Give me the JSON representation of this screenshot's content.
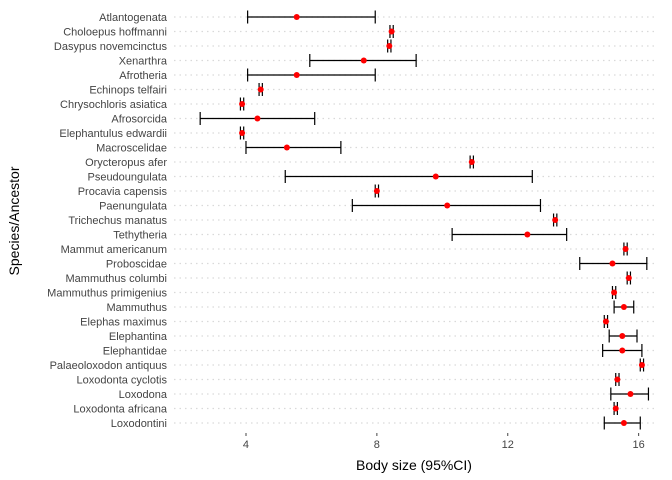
{
  "chart_data": {
    "type": "scatter",
    "subtype": "point-with-error-bars",
    "xlabel": "Body size (95%CI)",
    "ylabel": "Species/Ancestor",
    "xlim": [
      1.8,
      16.5
    ],
    "xticks": [
      4,
      8,
      12,
      16
    ],
    "grid": "dotted horizontal major gridlines",
    "point_color": "#ff0000",
    "errorbar_color": "#000000",
    "categories": [
      "Atlantogenata",
      "Choloepus hoffmanni",
      "Dasypus novemcinctus",
      "Xenarthra",
      "Afrotheria",
      "Echinops telfairi",
      "Chrysochloris asiatica",
      "Afrosorcida",
      "Elephantulus edwardii",
      "Macroscelidae",
      "Orycteropus afer",
      "Pseudoungulata",
      "Procavia capensis",
      "Paenungulata",
      "Trichechus manatus",
      "Tethytheria",
      "Mammut americanum",
      "Proboscidae",
      "Mammuthus columbi",
      "Mammuthus primigenius",
      "Mammuthus",
      "Elephas maximus",
      "Elephantina",
      "Elephantidae",
      "Palaeoloxodon antiquus",
      "Loxodonta cyclotis",
      "Loxodona",
      "Loxodonta africana",
      "Loxodontini"
    ],
    "estimate": [
      5.55,
      8.45,
      8.38,
      7.6,
      5.55,
      4.45,
      3.88,
      4.35,
      3.88,
      5.25,
      10.9,
      9.8,
      8.0,
      10.15,
      13.45,
      12.6,
      15.6,
      15.2,
      15.7,
      15.25,
      15.55,
      15.0,
      15.5,
      15.5,
      16.1,
      15.35,
      15.75,
      15.3,
      15.55
    ],
    "lower": [
      4.05,
      8.4,
      8.33,
      5.95,
      4.05,
      4.4,
      3.83,
      2.6,
      3.83,
      4.0,
      10.85,
      5.2,
      7.95,
      7.25,
      13.4,
      10.3,
      15.55,
      14.2,
      15.65,
      15.2,
      15.25,
      14.95,
      15.1,
      14.9,
      16.05,
      15.3,
      15.15,
      15.25,
      14.95
    ],
    "upper": [
      7.95,
      8.5,
      8.43,
      9.2,
      7.95,
      4.5,
      3.93,
      6.1,
      3.93,
      6.9,
      10.95,
      12.75,
      8.05,
      13.0,
      13.5,
      13.8,
      15.65,
      16.25,
      15.75,
      15.3,
      15.85,
      15.05,
      15.95,
      16.1,
      16.15,
      15.4,
      16.3,
      15.35,
      16.05
    ]
  }
}
